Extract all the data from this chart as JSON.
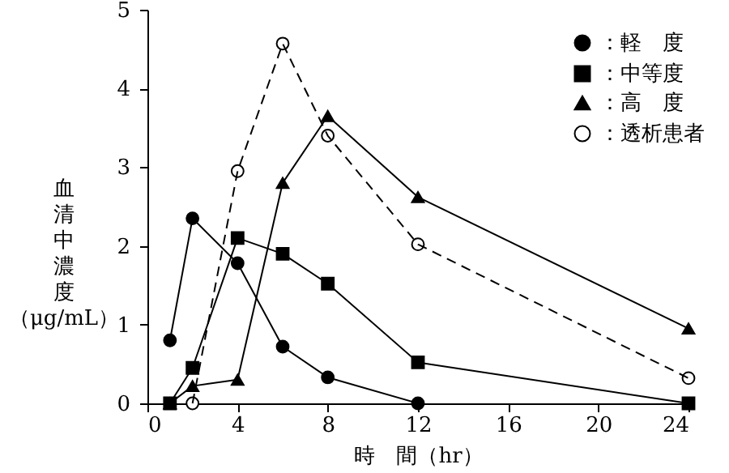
{
  "chart_data": {
    "type": "line",
    "xlabel": "時　間（hr）",
    "ylabel": "血清中濃度（μg/mL）",
    "xlim": [
      0,
      24
    ],
    "xticks": [
      0,
      4,
      8,
      12,
      16,
      20,
      24
    ],
    "ylim": [
      0,
      5
    ],
    "yticks": [
      0,
      1,
      2,
      3,
      4,
      5
    ],
    "grid": false,
    "legend": "top right",
    "series": [
      {
        "name": "：軽　度",
        "color": "#000000",
        "marker": "circle",
        "line_style": "solid",
        "x": [
          1,
          2,
          4,
          6,
          8,
          12
        ],
        "values": [
          0.8,
          2.35,
          1.78,
          0.72,
          0.33,
          0.0
        ]
      },
      {
        "name": "：中等度",
        "color": "#000000",
        "marker": "square",
        "line_style": "solid",
        "x": [
          1,
          2,
          4,
          6,
          8,
          12,
          24
        ],
        "values": [
          0.0,
          0.45,
          2.1,
          1.9,
          1.52,
          0.52,
          0.0
        ]
      },
      {
        "name": "：高　度",
        "color": "#000000",
        "marker": "triangle",
        "line_style": "solid",
        "x": [
          1,
          2,
          4,
          6,
          8,
          12,
          24
        ],
        "values": [
          0.0,
          0.22,
          0.3,
          2.8,
          3.65,
          2.62,
          0.95
        ]
      },
      {
        "name": "：透析患者",
        "color": "#000000",
        "marker": "circle",
        "line_style": "dashed",
        "x": [
          2,
          4,
          6,
          8,
          12,
          24
        ],
        "values": [
          0.0,
          2.95,
          4.57,
          3.4,
          2.02,
          0.32
        ]
      }
    ]
  }
}
